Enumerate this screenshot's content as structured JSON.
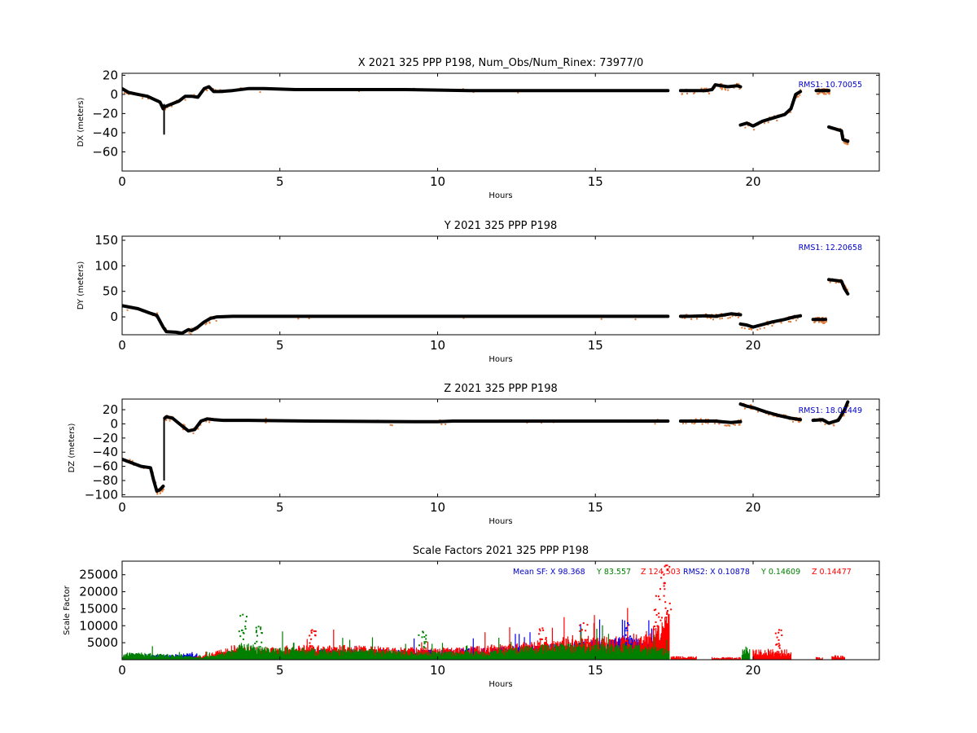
{
  "chart_data": [
    {
      "type": "scatter",
      "title": "X 2021 325 PPP  P198, Num_Obs/Num_Rinex: 73977/0",
      "xlabel": "Hours",
      "ylabel": "DX (meters)",
      "xlim": [
        0,
        24
      ],
      "ylim": [
        -80,
        22
      ],
      "xticks": [
        "0",
        "5",
        "10",
        "15",
        "20"
      ],
      "yticks": [
        "20",
        "0",
        "−20",
        "−40",
        "−60"
      ],
      "ytick_values": [
        20,
        0,
        -20,
        -40,
        -60
      ],
      "annotation": {
        "text": "RMS1: 10.70055",
        "color": "#0000cc",
        "placement": "top-right"
      },
      "colors": {
        "main": "#000000",
        "outlier": "#e07b39"
      },
      "series": [
        {
          "x": [
            0,
            0.2,
            0.5,
            0.8,
            1.0,
            1.2,
            1.3,
            1.35,
            1.5,
            1.8,
            2.0,
            2.2,
            2.4,
            2.6,
            2.75,
            2.9,
            3.1,
            3.5,
            4.0,
            4.5,
            5.5,
            7.0,
            9.0,
            11.0,
            13.0,
            15.0,
            17.3
          ],
          "y": [
            6,
            2,
            0,
            -2,
            -5,
            -8,
            -15,
            -13,
            -11,
            -7,
            -2,
            -2,
            -3,
            6,
            8,
            3,
            3,
            4,
            6,
            6,
            5,
            5,
            5,
            4,
            4,
            4,
            4
          ]
        },
        {
          "x": [
            17.7,
            17.9,
            18.2,
            18.5,
            18.7,
            18.8,
            19.0,
            19.2,
            19.5,
            19.6
          ],
          "y": [
            4,
            4,
            4,
            4,
            5,
            10,
            9,
            8,
            9,
            8
          ]
        },
        {
          "x": [
            19.6,
            19.8,
            20.0,
            20.3,
            20.7,
            21.0,
            21.2,
            21.35,
            21.5
          ],
          "y": [
            -32,
            -30,
            -33,
            -28,
            -24,
            -21,
            -15,
            0,
            3
          ]
        },
        {
          "x": [
            22.0,
            22.2,
            22.4
          ],
          "y": [
            4,
            4,
            4
          ]
        },
        {
          "x": [
            22.4,
            22.8,
            22.85,
            23.0
          ],
          "y": [
            -34,
            -38,
            -47,
            -49
          ]
        }
      ],
      "spikes": [
        {
          "x": 1.33,
          "y0": -42,
          "y1": -10
        }
      ]
    },
    {
      "type": "scatter",
      "title": "Y 2021 325 PPP  P198",
      "xlabel": "Hours",
      "ylabel": "DY (meters)",
      "xlim": [
        0,
        24
      ],
      "ylim": [
        -35,
        158
      ],
      "xticks": [
        "0",
        "5",
        "10",
        "15",
        "20"
      ],
      "yticks": [
        "150",
        "100",
        "50",
        "0"
      ],
      "ytick_values": [
        150,
        100,
        50,
        0
      ],
      "annotation": {
        "text": "RMS1: 12.20658",
        "color": "#0000cc",
        "placement": "top-right"
      },
      "colors": {
        "main": "#000000",
        "outlier": "#e07b39"
      },
      "series": [
        {
          "x": [
            0,
            0.5,
            0.9,
            1.1,
            1.3,
            1.4,
            1.7,
            1.9,
            2.1,
            2.2,
            2.4,
            2.6,
            2.8,
            3.0,
            3.5,
            5.0,
            10.0,
            15.0,
            17.3
          ],
          "y": [
            22,
            16,
            7,
            3,
            -20,
            -29,
            -30,
            -32,
            -25,
            -27,
            -20,
            -10,
            -3,
            0,
            1,
            1,
            1,
            1,
            1
          ]
        },
        {
          "x": [
            17.7,
            18.0,
            18.5,
            18.8,
            19.0,
            19.3,
            19.6
          ],
          "y": [
            1,
            1,
            2,
            1,
            3,
            6,
            4
          ]
        },
        {
          "x": [
            19.6,
            19.8,
            20.0,
            20.3,
            20.6,
            21.0,
            21.3,
            21.5
          ],
          "y": [
            -14,
            -16,
            -20,
            -15,
            -10,
            -5,
            0,
            2
          ]
        },
        {
          "x": [
            21.9,
            22.3
          ],
          "y": [
            -5,
            -5
          ]
        },
        {
          "x": [
            22.4,
            22.8,
            22.9,
            23.0
          ],
          "y": [
            73,
            70,
            55,
            45
          ]
        }
      ],
      "spikes": []
    },
    {
      "type": "scatter",
      "title": "Z 2021 325 PPP  P198",
      "xlabel": "Hours",
      "ylabel": "DZ (meters)",
      "xlim": [
        0,
        24
      ],
      "ylim": [
        -103,
        35
      ],
      "xticks": [
        "0",
        "5",
        "10",
        "15",
        "20"
      ],
      "yticks": [
        "20",
        "0",
        "−20",
        "−40",
        "−60",
        "−80",
        "−100"
      ],
      "ytick_values": [
        20,
        0,
        -20,
        -40,
        -60,
        -80,
        -100
      ],
      "annotation": {
        "text": "RMS1: 18.02449",
        "color": "#0000cc",
        "placement": "top-right"
      },
      "colors": {
        "main": "#000000",
        "outlier": "#e07b39"
      },
      "series": [
        {
          "x": [
            0,
            0.3,
            0.6,
            0.9,
            1.0,
            1.1,
            1.2,
            1.3
          ],
          "y": [
            -50,
            -55,
            -60,
            -62,
            -80,
            -95,
            -93,
            -88
          ]
        },
        {
          "x": [
            1.35,
            1.4,
            1.6,
            1.9,
            2.1,
            2.3,
            2.5,
            2.7,
            2.9,
            3.2,
            4.0,
            6.0,
            9.5,
            10.0,
            10.5,
            13.0,
            15.0,
            17.3
          ],
          "y": [
            8,
            10,
            8,
            -3,
            -10,
            -8,
            4,
            7,
            6,
            5,
            5,
            4,
            3,
            3,
            4,
            4,
            4,
            4
          ]
        },
        {
          "x": [
            17.7,
            18.0,
            18.5,
            18.8,
            19.0,
            19.3,
            19.6
          ],
          "y": [
            4,
            4,
            4,
            4,
            3,
            2,
            3
          ]
        },
        {
          "x": [
            19.6,
            19.8,
            20.0,
            20.4,
            20.8,
            21.2,
            21.5
          ],
          "y": [
            28,
            25,
            23,
            17,
            12,
            8,
            6
          ]
        },
        {
          "x": [
            21.9,
            22.2,
            22.4,
            22.7,
            22.9,
            23.0
          ],
          "y": [
            5,
            6,
            1,
            5,
            20,
            31
          ]
        }
      ],
      "spikes": [
        {
          "x": 1.33,
          "y0": -80,
          "y1": 8
        }
      ]
    },
    {
      "type": "bar",
      "title": "Scale Factors 2021 325 PPP  P198",
      "xlabel": "Hours",
      "ylabel": "Scale Factor",
      "xlim": [
        0,
        24
      ],
      "ylim": [
        0,
        29000
      ],
      "xticks": [
        "0",
        "5",
        "10",
        "15",
        "20"
      ],
      "yticks": [
        "25000",
        "20000",
        "15000",
        "10000",
        "5000"
      ],
      "ytick_values": [
        25000,
        20000,
        15000,
        10000,
        5000
      ],
      "annotation_parts": [
        {
          "text": "Mean SF: X  98.368",
          "color": "#0000cc"
        },
        {
          "text": "Y  83.557",
          "color": "#008000"
        },
        {
          "text": "Z 124.503",
          "color": "#ff0000"
        },
        {
          "text": "RMS2: X  0.10878",
          "color": "#0000cc"
        },
        {
          "text": "Y  0.14609",
          "color": "#008000"
        },
        {
          "text": "Z  0.14477",
          "color": "#ff0000"
        }
      ],
      "series": [
        {
          "name": "X",
          "color": "#0000ff",
          "envelope": [
            [
              0,
              300
            ],
            [
              0.3,
              1500
            ],
            [
              1.5,
              1200
            ],
            [
              2.0,
              1500
            ],
            [
              2.3,
              2000
            ],
            [
              2.4,
              200
            ],
            [
              3.0,
              300
            ],
            [
              3.5,
              1500
            ],
            [
              4.0,
              500
            ],
            [
              5.0,
              800
            ],
            [
              6.0,
              2500
            ],
            [
              9.0,
              2500
            ],
            [
              10.0,
              2500
            ],
            [
              11.0,
              2800
            ],
            [
              12.0,
              3000
            ],
            [
              13.0,
              3500
            ],
            [
              14.0,
              4000
            ],
            [
              15.0,
              4800
            ],
            [
              16.0,
              5500
            ],
            [
              16.5,
              5000
            ],
            [
              17.0,
              4500
            ],
            [
              17.35,
              5000
            ]
          ]
        },
        {
          "name": "Z",
          "color": "#ff0000",
          "envelope": [
            [
              0,
              200
            ],
            [
              2.0,
              300
            ],
            [
              2.8,
              1500
            ],
            [
              3.5,
              3500
            ],
            [
              4.5,
              3000
            ],
            [
              5.5,
              3500
            ],
            [
              6.5,
              3500
            ],
            [
              7.5,
              3500
            ],
            [
              8.5,
              3000
            ],
            [
              9.5,
              3000
            ],
            [
              10.5,
              3000
            ],
            [
              11.5,
              3500
            ],
            [
              12.5,
              4000
            ],
            [
              13.5,
              5000
            ],
            [
              14.5,
              6000
            ],
            [
              15.5,
              5500
            ],
            [
              16.5,
              6500
            ],
            [
              17.0,
              9000
            ],
            [
              17.35,
              12000
            ]
          ]
        },
        {
          "name": "Y",
          "color": "#008000",
          "envelope": [
            [
              0,
              1000
            ],
            [
              0.2,
              2000
            ],
            [
              1.0,
              1500
            ],
            [
              2.0,
              1200
            ],
            [
              2.5,
              500
            ],
            [
              3.0,
              1500
            ],
            [
              3.5,
              2500
            ],
            [
              3.8,
              4500
            ],
            [
              4.2,
              3500
            ],
            [
              5.0,
              3000
            ],
            [
              6.0,
              2800
            ],
            [
              7.0,
              2500
            ],
            [
              8.0,
              2500
            ],
            [
              9.0,
              2000
            ],
            [
              10.0,
              2000
            ],
            [
              11.0,
              2000
            ],
            [
              12.0,
              2500
            ],
            [
              13.0,
              3500
            ],
            [
              14.0,
              4000
            ],
            [
              15.0,
              4000
            ],
            [
              16.0,
              4000
            ],
            [
              17.0,
              3000
            ],
            [
              17.35,
              2500
            ]
          ]
        }
      ],
      "tail_segments": [
        {
          "color": "#ff0000",
          "x0": 17.4,
          "x1": 18.2,
          "y": 800
        },
        {
          "color": "#ff0000",
          "x0": 18.7,
          "x1": 19.6,
          "y": 600
        },
        {
          "color": "#008000",
          "x0": 19.65,
          "x1": 19.9,
          "y": 3000
        },
        {
          "color": "#ff0000",
          "x0": 20.0,
          "x1": 21.2,
          "y": 2500
        },
        {
          "color": "#ff0000",
          "x0": 22.0,
          "x1": 22.2,
          "y": 600
        },
        {
          "color": "#ff0000",
          "x0": 22.5,
          "x1": 22.9,
          "y": 1200
        }
      ],
      "peaks": [
        {
          "x": 3.8,
          "y": 13500,
          "color": "#008000"
        },
        {
          "x": 4.3,
          "y": 10000,
          "color": "#008000"
        },
        {
          "x": 6.0,
          "y": 9000,
          "color": "#ff0000"
        },
        {
          "x": 9.5,
          "y": 8500,
          "color": "#008000"
        },
        {
          "x": 13.3,
          "y": 9500,
          "color": "#ff0000"
        },
        {
          "x": 14.6,
          "y": 11000,
          "color": "#ff0000"
        },
        {
          "x": 16.0,
          "y": 11000,
          "color": "#0000ff"
        },
        {
          "x": 16.9,
          "y": 19000,
          "color": "#ff0000"
        },
        {
          "x": 17.1,
          "y": 26000,
          "color": "#ff0000"
        },
        {
          "x": 17.25,
          "y": 28000,
          "color": "#ff0000"
        },
        {
          "x": 20.8,
          "y": 9000,
          "color": "#ff0000"
        }
      ]
    }
  ]
}
